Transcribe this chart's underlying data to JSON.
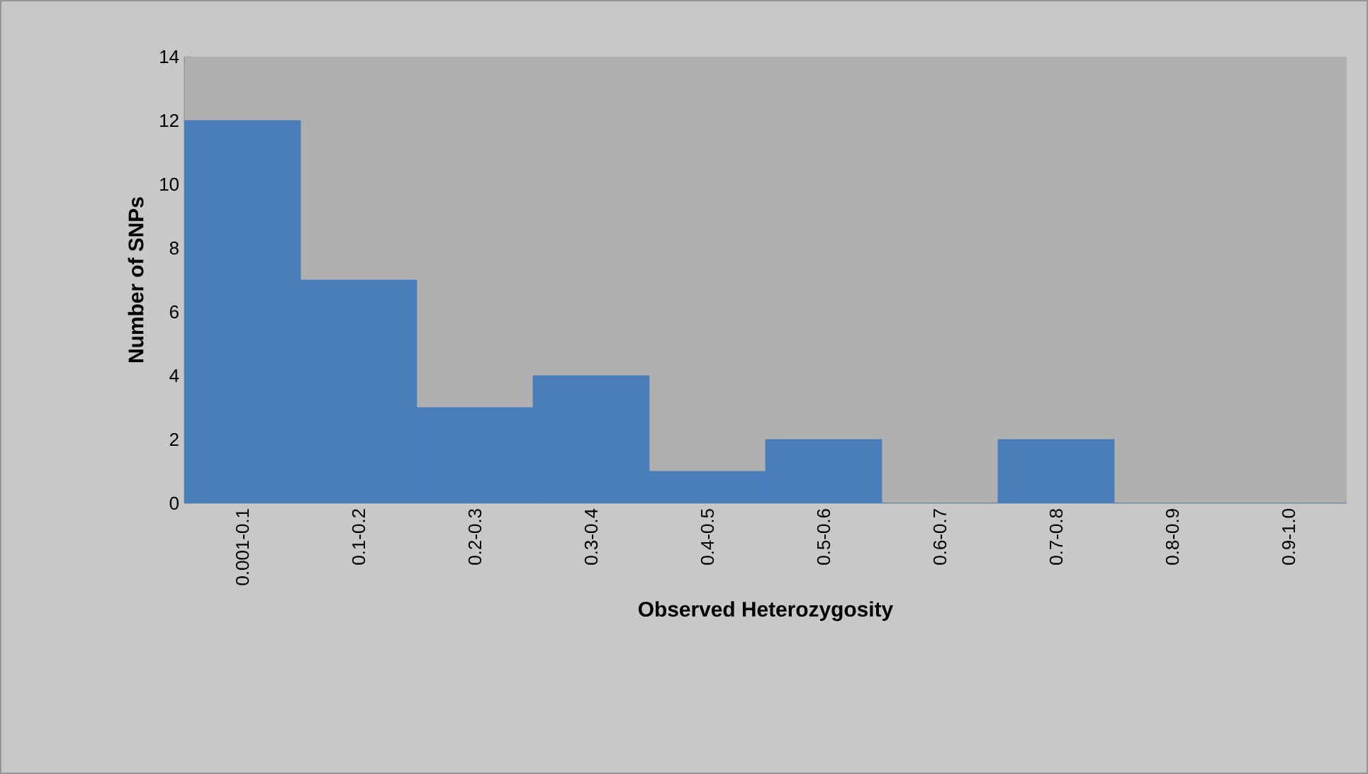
{
  "chart_data": {
    "type": "bar",
    "xlabel": "Observed Heterozygosity",
    "ylabel": "Number of SNPs",
    "categories": [
      "0.001-0.1",
      "0.1-0.2",
      "0.2-0.3",
      "0.3-0.4",
      "0.4-0.5",
      "0.5-0.6",
      "0.6-0.7",
      "0.7-0.8",
      "0.8-0.9",
      "0.9-1.0"
    ],
    "values": [
      12,
      7,
      3,
      4,
      1,
      2,
      0,
      2,
      0,
      0
    ],
    "color": "#4a7ebb",
    "ylim": [
      0,
      14
    ],
    "yticks": [
      0,
      2,
      4,
      6,
      8,
      10,
      12,
      14
    ],
    "grid": false
  }
}
